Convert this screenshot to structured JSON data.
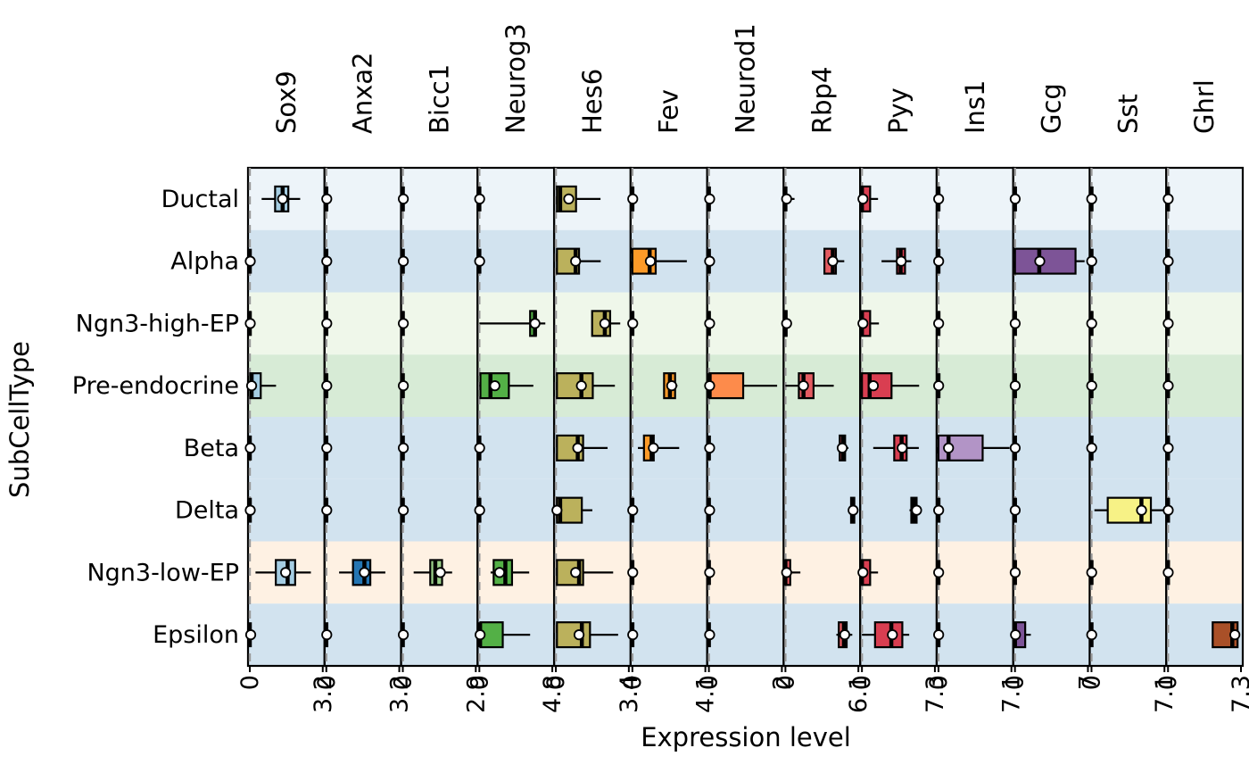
{
  "chart_data": {
    "type": "boxplot",
    "xlabel": "Expression level",
    "ylabel": "SubCellType",
    "genes": [
      "Sox9",
      "Anxa2",
      "Bicc1",
      "Neurog3",
      "Hes6",
      "Fev",
      "Neurod1",
      "Rbp4",
      "Pyy",
      "Ins1",
      "Gcg",
      "Sst",
      "Ghrl"
    ],
    "gene_max": [
      "3.2",
      "3.2",
      "2.9",
      "4.8",
      "3.4",
      "4.1",
      "2",
      "6.1",
      "7.3",
      "7.1",
      "7",
      "7.1",
      "7.3"
    ],
    "min_label": "0",
    "rows": [
      "Ductal",
      "Alpha",
      "Ngn3-high-EP",
      "Pre-endocrine",
      "Beta",
      "Delta",
      "Ngn3-low-EP",
      "Epsilon"
    ],
    "row_colors": [
      "#edf4f9",
      "#d2e3ef",
      "#eff7ea",
      "#d7ebd6",
      "#d2e3ef",
      "#d2e3ef",
      "#fef1e3",
      "#d2e3ef"
    ],
    "gene_colors": [
      "#a5cde2",
      "#2476b3",
      "#9acf88",
      "#53b046",
      "#bbb15c",
      "#fc9a28",
      "#fd8b4b",
      "#e45b61",
      "#d93e51",
      "#b294c6",
      "#7d5497",
      "#f7f286",
      "#a95028"
    ],
    "boxes": [
      [
        [
          0.52,
          1.11,
          1.44,
          1.69,
          2.21,
          1.44
        ],
        [
          0,
          0,
          0,
          0,
          0,
          0.02
        ],
        [
          0,
          0,
          0,
          0,
          0,
          0.02
        ],
        [
          0,
          0.02,
          0.08,
          0.48,
          1.15,
          0.08
        ],
        [
          0,
          0,
          0,
          0,
          0,
          0.02
        ],
        [
          0,
          0,
          0,
          0,
          0,
          0.02
        ],
        [
          0.25,
          1.14,
          1.66,
          1.99,
          2.68,
          1.57
        ],
        [
          0,
          0,
          0,
          0,
          0,
          0.04
        ]
      ],
      [
        [
          0,
          0,
          0,
          0,
          0,
          0.02
        ],
        [
          0,
          0,
          0,
          0,
          0,
          0.02
        ],
        [
          0,
          0,
          0,
          0,
          0,
          0.02
        ],
        [
          0,
          0,
          0,
          0,
          0,
          0.02
        ],
        [
          0,
          0,
          0,
          0,
          0,
          0.02
        ],
        [
          0,
          0,
          0,
          0,
          0,
          0.02
        ],
        [
          0.56,
          1.17,
          1.67,
          1.93,
          2.59,
          1.67
        ],
        [
          0,
          0,
          0,
          0,
          0,
          0.02
        ]
      ],
      [
        [
          0,
          0,
          0,
          0,
          0,
          0.02
        ],
        [
          0,
          0,
          0,
          0,
          0,
          0.02
        ],
        [
          0,
          0,
          0,
          0,
          0,
          0.02
        ],
        [
          0,
          0,
          0,
          0,
          0,
          0.02
        ],
        [
          0,
          0,
          0,
          0,
          0,
          0.02
        ],
        [
          0,
          0,
          0,
          0,
          0,
          0.02
        ],
        [
          0.43,
          1.09,
          1.29,
          1.56,
          1.96,
          1.49
        ],
        [
          0,
          0,
          0,
          0,
          0,
          0.02
        ]
      ],
      [
        [
          0,
          0,
          0,
          0,
          0,
          0.02
        ],
        [
          0,
          0,
          0,
          0,
          0,
          0.02
        ],
        [
          0,
          3.34,
          3.66,
          3.72,
          4.34,
          3.66
        ],
        [
          0,
          0.07,
          0.73,
          1.94,
          3.55,
          1.02
        ],
        [
          0,
          0,
          0,
          0,
          0,
          0.02
        ],
        [
          0,
          0,
          0,
          0,
          0,
          0.02
        ],
        [
          0.74,
          0.94,
          1.71,
          2.15,
          3.28,
          1.33
        ],
        [
          0,
          0.07,
          0.05,
          1.54,
          3.34,
          0.05
        ]
      ],
      [
        [
          0.05,
          0.05,
          0.2,
          0.94,
          2.08,
          0.6
        ],
        [
          0.05,
          0.05,
          0.92,
          1.08,
          2.09,
          0.92
        ],
        [
          1.69,
          1.69,
          2.28,
          2.53,
          3.0,
          2.28
        ],
        [
          0.05,
          0.05,
          1.19,
          1.72,
          2.75,
          1.19
        ],
        [
          0.05,
          0.05,
          1.02,
          1.27,
          2.41,
          1.02
        ],
        [
          0.05,
          0.05,
          0.2,
          1.21,
          1.7,
          0.05
        ],
        [
          0.05,
          0.05,
          1.08,
          1.27,
          2.67,
          0.92
        ],
        [
          0.05,
          0.05,
          1.21,
          1.59,
          2.9,
          1.08
        ]
      ],
      [
        [
          0,
          0,
          0,
          0,
          0,
          0.02
        ],
        [
          0,
          0,
          0.97,
          1.31,
          3.06,
          1.01
        ],
        [
          0,
          0,
          0,
          0,
          0,
          0.02
        ],
        [
          1.78,
          1.78,
          2.11,
          2.4,
          2.53,
          2.21
        ],
        [
          0.31,
          0.65,
          1.08,
          1.2,
          2.63,
          1.18
        ],
        [
          0,
          0,
          0,
          0,
          0,
          0.02
        ],
        [
          0,
          0,
          0,
          0,
          0,
          0.02
        ],
        [
          0,
          0,
          0,
          0,
          0,
          0.02
        ]
      ],
      [
        [
          0,
          0,
          0,
          0,
          0,
          0.02
        ],
        [
          0,
          0,
          0,
          0,
          0,
          0.02
        ],
        [
          0,
          0,
          0,
          0,
          0,
          0.02
        ],
        [
          0,
          0.02,
          0.02,
          0.94,
          1.87,
          0.02
        ],
        [
          0,
          0,
          0,
          0,
          0,
          0.02
        ],
        [
          0,
          0,
          0,
          0,
          0,
          0.02
        ],
        [
          0,
          0,
          0,
          0,
          0,
          0.02
        ],
        [
          0,
          0,
          0,
          0,
          0,
          0.02
        ]
      ],
      [
        [
          0,
          0,
          0,
          0,
          0.76,
          0.1
        ],
        [
          3.26,
          3.26,
          3.96,
          4.22,
          4.92,
          3.96
        ],
        [
          0,
          0,
          0,
          0.1,
          0.1,
          0.1
        ],
        [
          0,
          1.12,
          1.51,
          2.35,
          4.04,
          1.51
        ],
        [
          4.52,
          4.54,
          4.82,
          4.99,
          5.27,
          4.75
        ],
        [
          5.49,
          5.49,
          5.66,
          5.76,
          5.89,
          5.66
        ],
        [
          0,
          0,
          0,
          0.4,
          1.25,
          0.1
        ],
        [
          4.26,
          4.46,
          4.89,
          5.12,
          5.59,
          4.96
        ]
      ],
      [
        [
          0,
          0,
          0,
          0.82,
          1.61,
          0.1
        ],
        [
          1.96,
          3.51,
          3.87,
          4.31,
          4.94,
          3.93
        ],
        [
          0,
          0,
          0,
          0.82,
          1.7,
          0.1
        ],
        [
          0,
          0,
          0.77,
          2.96,
          5.72,
          1.14
        ],
        [
          1.13,
          3.23,
          3.97,
          4.47,
          5.69,
          4.03
        ],
        [
          4.76,
          4.94,
          5.23,
          5.47,
          5.92,
          5.47
        ],
        [
          0,
          0,
          0,
          0.82,
          1.61,
          0.1
        ],
        [
          0,
          1.31,
          2.94,
          4.04,
          4.73,
          3.05
        ]
      ],
      [
        [
          0,
          0,
          0,
          0,
          0,
          0.02
        ],
        [
          0,
          0,
          0,
          0,
          0,
          0.02
        ],
        [
          0,
          0,
          0,
          0,
          0,
          0.02
        ],
        [
          0,
          0,
          0,
          0,
          0,
          0.02
        ],
        [
          0,
          0,
          0.98,
          4.3,
          6.92,
          0.98
        ],
        [
          0,
          0,
          0,
          0,
          0,
          0.02
        ],
        [
          0,
          0,
          0,
          0,
          0,
          0.02
        ],
        [
          0,
          0,
          0,
          0,
          0,
          0.02
        ]
      ],
      [
        [
          0,
          0,
          0,
          0,
          0,
          0.02
        ],
        [
          0,
          0,
          2.33,
          5.81,
          6.68,
          2.38
        ],
        [
          0,
          0,
          0,
          0,
          0,
          0.02
        ],
        [
          0,
          0,
          0,
          0,
          0,
          0.02
        ],
        [
          0,
          0,
          0,
          0,
          0,
          0.02
        ],
        [
          0,
          0,
          0,
          0,
          0,
          0.02
        ],
        [
          0,
          0,
          0,
          0,
          0,
          0.02
        ],
        [
          0,
          0,
          0,
          0.98,
          1.52,
          0.05
        ]
      ],
      [
        [
          0,
          0,
          0,
          0,
          0,
          0.02
        ],
        [
          0,
          0,
          0,
          0,
          0,
          0.02
        ],
        [
          0,
          0,
          0,
          0,
          0,
          0.02
        ],
        [
          0,
          0,
          0,
          0,
          0,
          0.02
        ],
        [
          0,
          0,
          0,
          0,
          0,
          0.02
        ],
        [
          0.28,
          1.58,
          4.86,
          5.78,
          6.98,
          4.87
        ],
        [
          0,
          0,
          0,
          0,
          0,
          0.02
        ],
        [
          0,
          0,
          0,
          0,
          0,
          0.02
        ]
      ],
      [
        [
          0,
          0,
          0,
          0,
          0,
          0.02
        ],
        [
          0,
          0,
          0,
          0,
          0,
          0.02
        ],
        [
          0,
          0,
          0,
          0,
          0,
          0.02
        ],
        [
          0,
          0,
          0,
          0,
          0,
          0.02
        ],
        [
          0,
          0,
          0,
          0,
          0,
          0.02
        ],
        [
          0,
          0,
          0,
          0,
          0,
          0.02
        ],
        [
          0,
          0,
          0,
          0,
          0,
          0.02
        ],
        [
          4.47,
          4.47,
          6.43,
          6.96,
          7.17,
          6.69
        ]
      ]
    ]
  }
}
